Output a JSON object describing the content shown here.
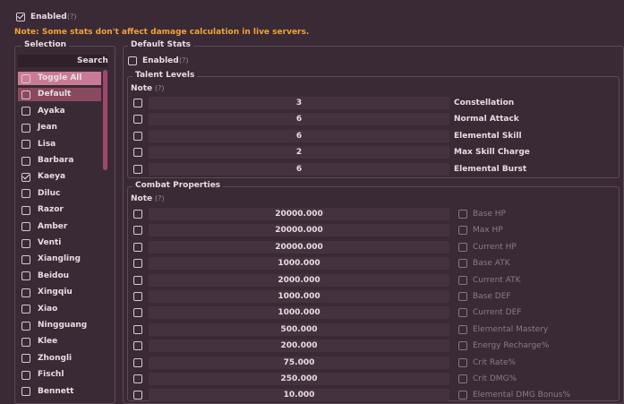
{
  "top": {
    "enabled_label": "Enabled",
    "help": "(?)",
    "note": "Note: Some stats don't affect damage calculation in live servers."
  },
  "selection": {
    "title": "Selection",
    "search_label": "Search",
    "items": [
      {
        "label": "Toggle All",
        "checked": false
      },
      {
        "label": "Default",
        "checked": false
      },
      {
        "label": "Ayaka",
        "checked": false
      },
      {
        "label": "Jean",
        "checked": false
      },
      {
        "label": "Lisa",
        "checked": false
      },
      {
        "label": "Barbara",
        "checked": false
      },
      {
        "label": "Kaeya",
        "checked": true
      },
      {
        "label": "Diluc",
        "checked": false
      },
      {
        "label": "Razor",
        "checked": false
      },
      {
        "label": "Amber",
        "checked": false
      },
      {
        "label": "Venti",
        "checked": false
      },
      {
        "label": "Xiangling",
        "checked": false
      },
      {
        "label": "Beidou",
        "checked": false
      },
      {
        "label": "Xingqiu",
        "checked": false
      },
      {
        "label": "Xiao",
        "checked": false
      },
      {
        "label": "Ningguang",
        "checked": false
      },
      {
        "label": "Klee",
        "checked": false
      },
      {
        "label": "Zhongli",
        "checked": false
      },
      {
        "label": "Fischl",
        "checked": false
      },
      {
        "label": "Bennett",
        "checked": false
      }
    ]
  },
  "default_stats": {
    "title": "Default Stats",
    "enabled_label": "Enabled",
    "help": "(?)"
  },
  "talent": {
    "title": "Talent Levels",
    "note_label": "Note",
    "help": "(?)",
    "rows": [
      {
        "value": "3",
        "label": "Constellation"
      },
      {
        "value": "6",
        "label": "Normal Attack"
      },
      {
        "value": "6",
        "label": "Elemental Skill"
      },
      {
        "value": "2",
        "label": "Max Skill Charge"
      },
      {
        "value": "6",
        "label": "Elemental Burst"
      }
    ]
  },
  "combat": {
    "title": "Combat Properties",
    "note_label": "Note",
    "help": "(?)",
    "rows": [
      {
        "value": "20000.000",
        "label": "Base HP"
      },
      {
        "value": "20000.000",
        "label": "Max HP"
      },
      {
        "value": "20000.000",
        "label": "Current HP"
      },
      {
        "value": "1000.000",
        "label": "Base ATK"
      },
      {
        "value": "2000.000",
        "label": "Current ATK"
      },
      {
        "value": "1000.000",
        "label": "Base DEF"
      },
      {
        "value": "1000.000",
        "label": "Current DEF"
      },
      {
        "value": "500.000",
        "label": "Elemental Mastery"
      },
      {
        "value": "200.000",
        "label": "Energy Recharge%"
      },
      {
        "value": "75.000",
        "label": "Crit Rate%"
      },
      {
        "value": "250.000",
        "label": "Crit DMG%"
      },
      {
        "value": "10.000",
        "label": "Elemental DMG Bonus%"
      }
    ]
  }
}
